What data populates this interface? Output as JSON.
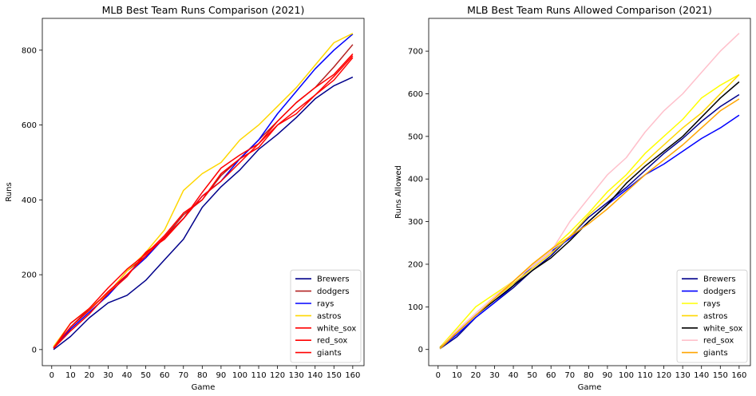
{
  "chart_data": [
    {
      "type": "line",
      "title": "MLB Best Team Runs Comparison (2021)",
      "xlabel": "Game",
      "ylabel": "Runs",
      "xlim": [
        -5,
        166
      ],
      "ylim": [
        -43,
        885
      ],
      "xticks": [
        0,
        10,
        20,
        30,
        40,
        50,
        60,
        70,
        80,
        90,
        100,
        110,
        120,
        130,
        140,
        150,
        160
      ],
      "yticks": [
        0,
        200,
        400,
        600,
        800
      ],
      "legend_position": "lower-right",
      "series": [
        {
          "name": "Brewers",
          "color": "#00008b",
          "x": [
            1,
            10,
            20,
            30,
            40,
            50,
            60,
            70,
            80,
            90,
            100,
            110,
            120,
            130,
            140,
            150,
            160
          ],
          "y": [
            0,
            35,
            85,
            125,
            145,
            185,
            240,
            295,
            380,
            435,
            480,
            535,
            575,
            620,
            670,
            705,
            728
          ]
        },
        {
          "name": "dodgers",
          "color": "#b22222",
          "x": [
            1,
            10,
            20,
            30,
            40,
            50,
            60,
            70,
            80,
            90,
            100,
            110,
            120,
            130,
            140,
            150,
            160
          ],
          "y": [
            5,
            60,
            110,
            150,
            210,
            250,
            300,
            360,
            400,
            465,
            510,
            560,
            610,
            660,
            700,
            755,
            815
          ]
        },
        {
          "name": "rays",
          "color": "#0000ff",
          "x": [
            1,
            10,
            20,
            30,
            40,
            50,
            60,
            70,
            80,
            90,
            100,
            110,
            120,
            130,
            140,
            150,
            160
          ],
          "y": [
            3,
            55,
            100,
            145,
            200,
            245,
            300,
            350,
            410,
            450,
            510,
            560,
            630,
            690,
            750,
            800,
            843
          ]
        },
        {
          "name": "astros",
          "color": "#ffd700",
          "x": [
            1,
            10,
            20,
            30,
            40,
            50,
            60,
            70,
            80,
            90,
            100,
            110,
            120,
            130,
            140,
            150,
            160
          ],
          "y": [
            8,
            70,
            110,
            150,
            210,
            260,
            320,
            425,
            470,
            500,
            560,
            600,
            650,
            700,
            760,
            820,
            845
          ]
        },
        {
          "name": "white_sox",
          "color": "#ff0000",
          "x": [
            1,
            10,
            20,
            30,
            40,
            50,
            60,
            70,
            80,
            90,
            100,
            110,
            120,
            130,
            140,
            150,
            160
          ],
          "y": [
            5,
            60,
            105,
            155,
            200,
            250,
            300,
            350,
            420,
            485,
            520,
            550,
            610,
            660,
            700,
            735,
            790
          ]
        },
        {
          "name": "red_sox",
          "color": "#ff0000",
          "x": [
            1,
            10,
            20,
            30,
            40,
            50,
            60,
            70,
            80,
            90,
            100,
            110,
            120,
            130,
            140,
            150,
            160
          ],
          "y": [
            4,
            70,
            110,
            165,
            215,
            255,
            305,
            365,
            400,
            470,
            510,
            540,
            600,
            640,
            680,
            730,
            785
          ]
        },
        {
          "name": "giants",
          "color": "#ff0000",
          "x": [
            1,
            10,
            20,
            30,
            40,
            50,
            60,
            70,
            80,
            90,
            100,
            110,
            120,
            130,
            140,
            150,
            160
          ],
          "y": [
            3,
            50,
            95,
            150,
            195,
            260,
            295,
            350,
            410,
            450,
            500,
            550,
            600,
            630,
            680,
            720,
            780
          ]
        }
      ]
    },
    {
      "type": "line",
      "title": "MLB Best Team Runs Allowed Comparison (2021)",
      "xlabel": "Game",
      "ylabel": "Runs Allowed",
      "xlim": [
        -5,
        166
      ],
      "ylim": [
        -38,
        777
      ],
      "xticks": [
        0,
        10,
        20,
        30,
        40,
        50,
        60,
        70,
        80,
        90,
        100,
        110,
        120,
        130,
        140,
        150,
        160
      ],
      "yticks": [
        0,
        100,
        200,
        300,
        400,
        500,
        600,
        700
      ],
      "legend_position": "lower-right",
      "series": [
        {
          "name": "Brewers",
          "color": "#00008b",
          "x": [
            1,
            10,
            20,
            30,
            40,
            50,
            60,
            70,
            80,
            90,
            100,
            110,
            120,
            130,
            140,
            150,
            160
          ],
          "y": [
            2,
            30,
            75,
            110,
            145,
            185,
            220,
            265,
            310,
            345,
            380,
            420,
            460,
            495,
            535,
            570,
            598
          ]
        },
        {
          "name": "dodgers",
          "color": "#0000ff",
          "x": [
            1,
            10,
            20,
            30,
            40,
            50,
            60,
            70,
            80,
            90,
            100,
            110,
            120,
            130,
            140,
            150,
            160
          ],
          "y": [
            3,
            35,
            75,
            110,
            150,
            195,
            230,
            260,
            300,
            340,
            375,
            410,
            435,
            465,
            495,
            520,
            550
          ]
        },
        {
          "name": "rays",
          "color": "#ffff00",
          "x": [
            1,
            10,
            20,
            30,
            40,
            50,
            60,
            70,
            80,
            90,
            100,
            110,
            120,
            130,
            140,
            150,
            160
          ],
          "y": [
            5,
            50,
            100,
            130,
            160,
            200,
            235,
            275,
            320,
            370,
            410,
            460,
            500,
            540,
            590,
            620,
            645
          ]
        },
        {
          "name": "astros",
          "color": "#ffd700",
          "x": [
            1,
            10,
            20,
            30,
            40,
            50,
            60,
            70,
            80,
            90,
            100,
            110,
            120,
            130,
            140,
            150,
            160
          ],
          "y": [
            2,
            40,
            80,
            120,
            155,
            190,
            225,
            265,
            315,
            355,
            400,
            440,
            480,
            520,
            555,
            600,
            645
          ]
        },
        {
          "name": "white_sox",
          "color": "#000000",
          "x": [
            1,
            10,
            20,
            30,
            40,
            50,
            60,
            70,
            80,
            90,
            100,
            110,
            120,
            130,
            140,
            150,
            160
          ],
          "y": [
            4,
            40,
            80,
            115,
            150,
            185,
            215,
            255,
            300,
            340,
            390,
            430,
            465,
            500,
            545,
            590,
            628
          ]
        },
        {
          "name": "red_sox",
          "color": "#ffc0cb",
          "x": [
            1,
            10,
            20,
            30,
            40,
            50,
            60,
            70,
            80,
            90,
            100,
            110,
            120,
            130,
            140,
            150,
            160
          ],
          "y": [
            3,
            45,
            85,
            125,
            160,
            195,
            230,
            300,
            355,
            410,
            450,
            510,
            560,
            600,
            650,
            700,
            742
          ]
        },
        {
          "name": "giants",
          "color": "#ffa500",
          "x": [
            1,
            10,
            20,
            30,
            40,
            50,
            60,
            70,
            80,
            90,
            100,
            110,
            120,
            130,
            140,
            150,
            160
          ],
          "y": [
            3,
            40,
            80,
            120,
            160,
            200,
            235,
            265,
            295,
            330,
            370,
            410,
            445,
            480,
            520,
            560,
            588
          ]
        }
      ]
    }
  ]
}
